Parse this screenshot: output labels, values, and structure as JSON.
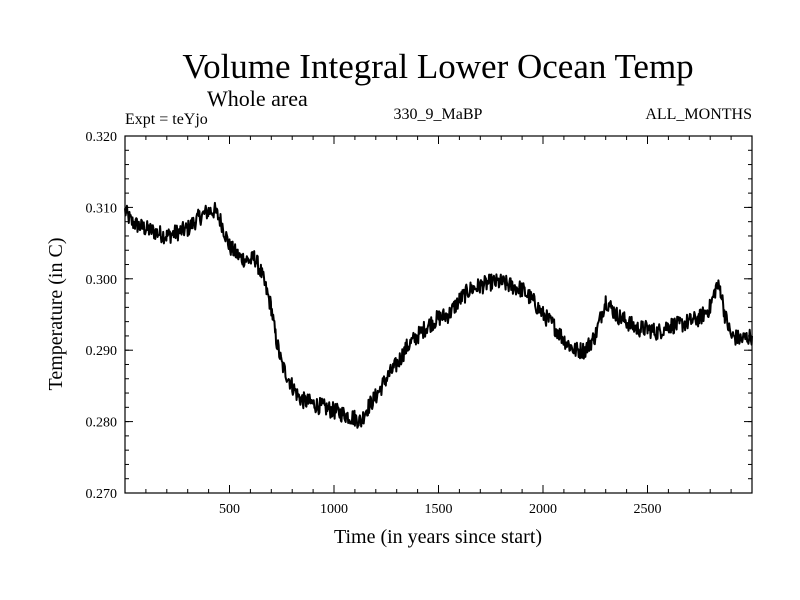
{
  "chart_data": {
    "type": "line",
    "title": "Volume Integral Lower Ocean Temp",
    "subtitle": "Whole area",
    "annotations": {
      "left": "Expt = teYjo",
      "center": "330_9_MaBP",
      "right": "ALL_MONTHS"
    },
    "xlabel": "Time (in years since start)",
    "ylabel": "Temperature (in C)",
    "xlim": [
      0,
      3000
    ],
    "ylim": [
      0.27,
      0.32
    ],
    "x_ticks": [
      500,
      1000,
      1500,
      2000,
      2500
    ],
    "x_tick_labels": [
      "500",
      "1000",
      "1500",
      "2000",
      "2500"
    ],
    "y_ticks": [
      0.27,
      0.28,
      0.29,
      0.3,
      0.31,
      0.32
    ],
    "y_tick_labels": [
      "0.270",
      "0.280",
      "0.290",
      "0.300",
      "0.310",
      "0.320"
    ],
    "grid": false,
    "series": [
      {
        "name": "Volume Integral Lower Ocean Temp",
        "color": "#000000",
        "x": [
          0,
          30,
          60,
          100,
          150,
          200,
          250,
          300,
          350,
          400,
          430,
          460,
          500,
          550,
          600,
          620,
          650,
          700,
          720,
          750,
          800,
          830,
          850,
          900,
          950,
          1000,
          1050,
          1100,
          1130,
          1150,
          1200,
          1250,
          1300,
          1350,
          1400,
          1450,
          1500,
          1550,
          1600,
          1650,
          1700,
          1750,
          1800,
          1850,
          1900,
          1950,
          2000,
          2050,
          2100,
          2150,
          2200,
          2250,
          2300,
          2350,
          2400,
          2450,
          2500,
          2550,
          2600,
          2650,
          2700,
          2750,
          2800,
          2830,
          2850,
          2870,
          2900,
          2950,
          3000
        ],
        "values": [
          0.3095,
          0.308,
          0.3075,
          0.307,
          0.3065,
          0.306,
          0.3065,
          0.307,
          0.3085,
          0.3095,
          0.3095,
          0.308,
          0.3045,
          0.303,
          0.3025,
          0.303,
          0.301,
          0.296,
          0.292,
          0.288,
          0.285,
          0.2835,
          0.283,
          0.2825,
          0.282,
          0.2815,
          0.281,
          0.2805,
          0.28,
          0.2815,
          0.2835,
          0.286,
          0.288,
          0.2905,
          0.292,
          0.2935,
          0.2945,
          0.295,
          0.297,
          0.2985,
          0.299,
          0.2995,
          0.2995,
          0.299,
          0.2985,
          0.297,
          0.295,
          0.2935,
          0.2915,
          0.29,
          0.29,
          0.292,
          0.297,
          0.295,
          0.294,
          0.293,
          0.293,
          0.2925,
          0.2935,
          0.2935,
          0.294,
          0.2945,
          0.296,
          0.299,
          0.2985,
          0.295,
          0.292,
          0.2915,
          0.292
        ]
      }
    ]
  }
}
